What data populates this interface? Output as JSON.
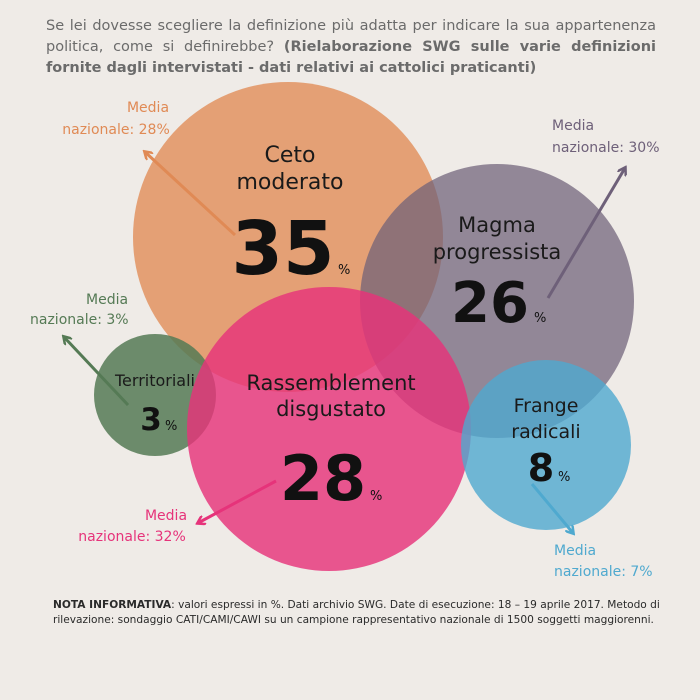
{
  "question": {
    "plain": "Se lei dovesse scegliere la definizione più adatta per indicare la sua appartenenza politica, come si definirebbe?",
    "bold": "(Rielaborazione SWG sulle varie definizioni fornite dagli intervistati - dati relativi ai cattolici praticanti)"
  },
  "note": {
    "label": "NOTA INFORMATIVA",
    "text": ": valori espressi in %. Dati archivio SWG. Date di esecuzione: 18 – 19 aprile  2017. Metodo di rilevazione: sondaggio CATI/CAMI/CAWI su un campione rappresentativo nazionale di 1500 soggetti maggiorenni."
  },
  "colors": {
    "background": "#efebe7",
    "ceto": "#e08a55",
    "magma": "#6e6079",
    "territoriali": "#557a55",
    "rassemblement": "#e6337a",
    "frange": "#4fa9cf"
  },
  "chart_data": {
    "type": "bubble",
    "unit": "%",
    "categories": [
      {
        "id": "ceto",
        "label": [
          "Ceto",
          "moderato"
        ],
        "value": 35,
        "national_label": [
          "Media",
          "nazionale: 28%"
        ],
        "national_value": 28,
        "color": "#e08a55",
        "arrow": "up-left"
      },
      {
        "id": "magma",
        "label": [
          "Magma",
          "progressista"
        ],
        "value": 26,
        "national_label": [
          "Media",
          "nazionale: 30%"
        ],
        "national_value": 30,
        "color": "#6e6079",
        "arrow": "up-right"
      },
      {
        "id": "territoriali",
        "label": [
          "Territoriali"
        ],
        "value": 3,
        "national_label": [
          "Media",
          "nazionale: 3%"
        ],
        "national_value": 3,
        "color": "#557a55",
        "arrow": "up-left"
      },
      {
        "id": "rassemblement",
        "label": [
          "Rassemblement",
          "disgustato"
        ],
        "value": 28,
        "national_label": [
          "Media",
          "nazionale: 32%"
        ],
        "national_value": 32,
        "color": "#e6337a",
        "arrow": "down-left"
      },
      {
        "id": "frange",
        "label": [
          "Frange",
          "radicali"
        ],
        "value": 8,
        "national_label": [
          "Media",
          "nazionale: 7%"
        ],
        "national_value": 7,
        "color": "#4fa9cf",
        "arrow": "down-right"
      }
    ]
  }
}
